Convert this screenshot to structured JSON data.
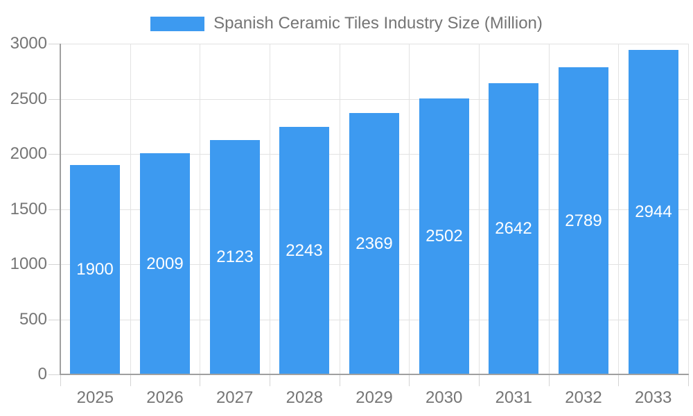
{
  "legend": {
    "label": "Spanish Ceramic Tiles Industry Size (Million)",
    "swatch_color": "#3D9AF0"
  },
  "chart_data": {
    "type": "bar",
    "title": "Spanish Ceramic Tiles Industry Size (Million)",
    "categories": [
      "2025",
      "2026",
      "2027",
      "2028",
      "2029",
      "2030",
      "2031",
      "2032",
      "2033"
    ],
    "values": [
      1900,
      2009,
      2123,
      2243,
      2369,
      2502,
      2642,
      2789,
      2944
    ],
    "xlabel": "",
    "ylabel": "",
    "ylim": [
      0,
      3000
    ],
    "yticks": [
      0,
      500,
      1000,
      1500,
      2000,
      2500,
      3000
    ],
    "grid": true,
    "legend_position": "top",
    "bar_color": "#3D9AF0",
    "value_label_color": "#FFFFFF",
    "axis_text_color": "#757575",
    "gridline_color": "#E2E2E2",
    "tick_color": "#D4D4D4",
    "axis_line_color": "#A0A0A0"
  }
}
